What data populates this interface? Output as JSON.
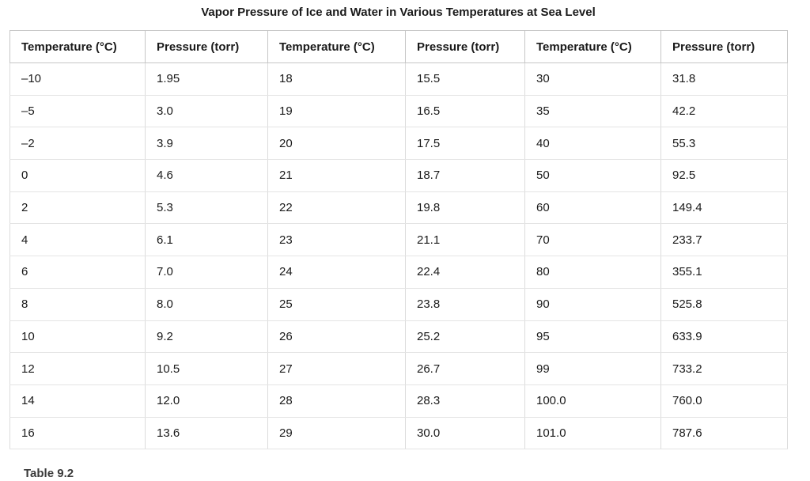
{
  "title": "Vapor Pressure of Ice and Water in Various Temperatures at Sea Level",
  "caption": "Table 9.2",
  "table": {
    "column_headers": [
      "Temperature (°C)",
      "Pressure (torr)",
      "Temperature (°C)",
      "Pressure (torr)",
      "Temperature (°C)",
      "Pressure (torr)"
    ],
    "rows": [
      [
        "–10",
        "1.95",
        "18",
        "15.5",
        "30",
        "31.8"
      ],
      [
        "–5",
        "3.0",
        "19",
        "16.5",
        "35",
        "42.2"
      ],
      [
        "–2",
        "3.9",
        "20",
        "17.5",
        "40",
        "55.3"
      ],
      [
        "0",
        "4.6",
        "21",
        "18.7",
        "50",
        "92.5"
      ],
      [
        "2",
        "5.3",
        "22",
        "19.8",
        "60",
        "149.4"
      ],
      [
        "4",
        "6.1",
        "23",
        "21.1",
        "70",
        "233.7"
      ],
      [
        "6",
        "7.0",
        "24",
        "22.4",
        "80",
        "355.1"
      ],
      [
        "8",
        "8.0",
        "25",
        "23.8",
        "90",
        "525.8"
      ],
      [
        "10",
        "9.2",
        "26",
        "25.2",
        "95",
        "633.9"
      ],
      [
        "12",
        "10.5",
        "27",
        "26.7",
        "99",
        "733.2"
      ],
      [
        "14",
        "12.0",
        "28",
        "28.3",
        "100.0",
        "760.0"
      ],
      [
        "16",
        "13.6",
        "29",
        "30.0",
        "101.0",
        "787.6"
      ]
    ]
  }
}
